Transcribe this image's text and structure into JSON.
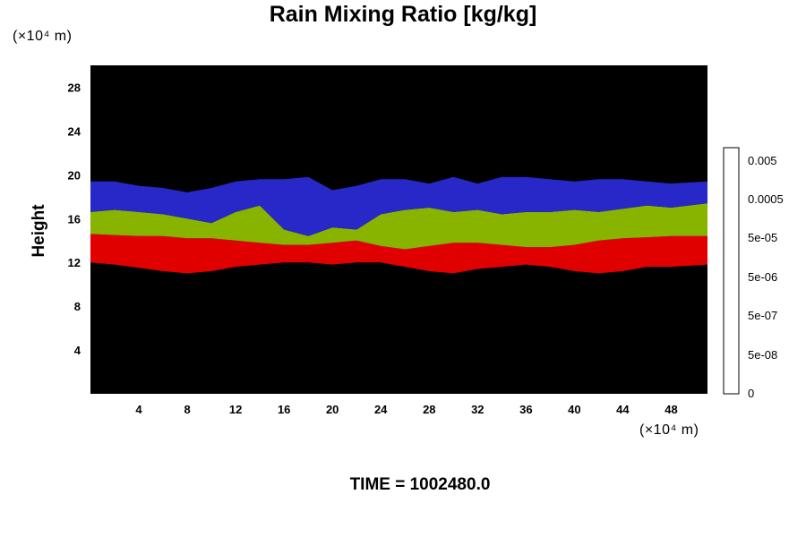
{
  "chart_data": {
    "type": "heatmap",
    "title": "Rain Mixing Ratio [kg/kg]",
    "xlabel": "",
    "ylabel": "Height",
    "x_unit_label": "(×10⁴ m)",
    "y_unit_label": "(×10⁴ m)",
    "xlim": [
      0,
      51
    ],
    "ylim": [
      0,
      30
    ],
    "x_ticks": [
      4,
      8,
      12,
      16,
      20,
      24,
      28,
      32,
      36,
      40,
      44,
      48
    ],
    "y_ticks": [
      4,
      8,
      12,
      16,
      20,
      24,
      28
    ],
    "grid": false,
    "background_color": "#000000",
    "layers": [
      {
        "color": "#e00000",
        "top": [
          14.6,
          14.5,
          14.4,
          14.4,
          14.2,
          14.2,
          14.0,
          13.8,
          13.6,
          13.6,
          13.8,
          14.0,
          13.5,
          13.2,
          13.5,
          13.8,
          13.8,
          13.6,
          13.4,
          13.4,
          13.6,
          14.0,
          14.2,
          14.3,
          14.4,
          14.4
        ],
        "bottom": [
          12.0,
          11.8,
          11.5,
          11.2,
          11.0,
          11.2,
          11.6,
          11.8,
          12.0,
          12.0,
          11.8,
          12.0,
          12.0,
          11.6,
          11.2,
          11.0,
          11.4,
          11.6,
          11.8,
          11.6,
          11.2,
          11.0,
          11.2,
          11.6,
          11.6,
          11.8
        ]
      },
      {
        "color": "#88b400",
        "top": [
          16.6,
          16.8,
          16.6,
          16.4,
          16.0,
          15.6,
          16.6,
          17.2,
          15.0,
          14.4,
          15.2,
          15.0,
          16.4,
          16.8,
          17.0,
          16.6,
          16.8,
          16.4,
          16.6,
          16.6,
          16.8,
          16.6,
          16.9,
          17.2,
          17.0,
          17.4
        ],
        "bottom": [
          14.6,
          14.5,
          14.4,
          14.4,
          14.2,
          14.2,
          14.0,
          13.8,
          13.6,
          13.6,
          13.8,
          14.0,
          13.5,
          13.2,
          13.5,
          13.8,
          13.8,
          13.6,
          13.4,
          13.4,
          13.6,
          14.0,
          14.2,
          14.3,
          14.4,
          14.4
        ]
      },
      {
        "color": "#2828c8",
        "top": [
          19.4,
          19.4,
          19.0,
          18.8,
          18.4,
          18.8,
          19.4,
          19.6,
          19.6,
          19.8,
          18.6,
          19.0,
          19.6,
          19.6,
          19.2,
          19.8,
          19.2,
          19.8,
          19.8,
          19.6,
          19.4,
          19.6,
          19.6,
          19.4,
          19.2,
          19.4
        ],
        "bottom": [
          16.6,
          16.8,
          16.6,
          16.4,
          16.0,
          15.6,
          16.6,
          17.2,
          15.0,
          14.4,
          15.2,
          15.0,
          16.4,
          16.8,
          17.0,
          16.6,
          16.8,
          16.4,
          16.6,
          16.6,
          16.8,
          16.6,
          16.9,
          17.2,
          17.0,
          17.4
        ]
      }
    ],
    "layer_x": [
      0,
      2,
      4,
      6,
      8,
      10,
      12,
      14,
      16,
      18,
      20,
      22,
      24,
      26,
      28,
      30,
      32,
      34,
      36,
      38,
      40,
      42,
      44,
      46,
      48,
      51
    ],
    "colorbar": {
      "labels": [
        "0.005",
        "0.0005",
        "5e-05",
        "5e-06",
        "5e-07",
        "5e-08",
        "0"
      ],
      "steps": 16,
      "color_low": "#000000",
      "color_high": "#ffffff"
    }
  },
  "time_label": "TIME = 1002480.0"
}
